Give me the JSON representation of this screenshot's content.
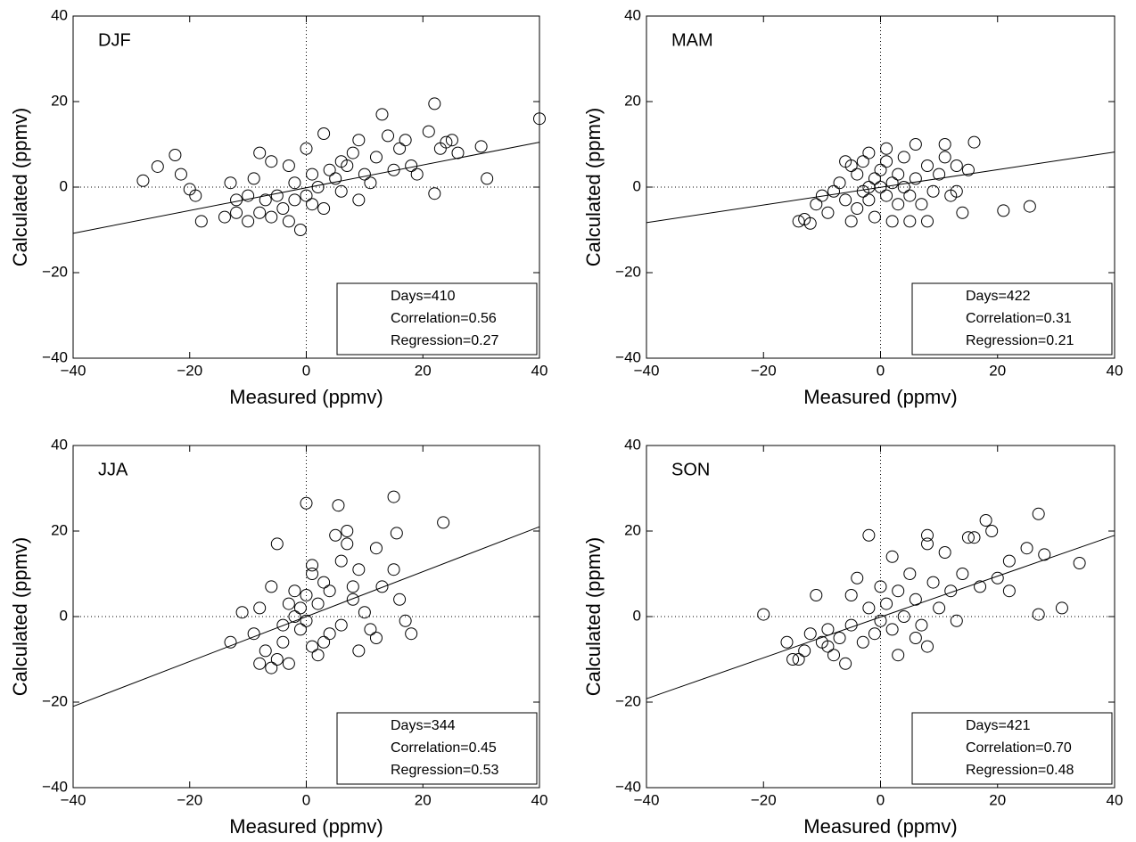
{
  "chart_data": [
    {
      "type": "scatter",
      "title": "DJF",
      "xlabel": "Measured (ppmv)",
      "ylabel": "Calculated (ppmv)",
      "xlim": [
        -40,
        40
      ],
      "ylim": [
        -40,
        40
      ],
      "xticks": [
        {
          "value": -40,
          "label": "−40"
        },
        {
          "value": -20,
          "label": "−20"
        },
        0,
        20,
        40
      ],
      "yticks": [
        {
          "value": -40,
          "label": "−40"
        },
        {
          "value": -20,
          "label": "−20"
        },
        0,
        20,
        40
      ],
      "zero_lines": true,
      "color": "#000000",
      "stats": [
        "Days=410",
        "Correlation=0.56",
        "Regression=0.27"
      ],
      "regression_line": {
        "x": [
          -40,
          40
        ],
        "y": [
          -10.8,
          10.5
        ]
      },
      "x": [
        -28,
        -25.5,
        -22.5,
        -21.5,
        -20,
        -19,
        -18,
        40,
        31,
        30,
        22,
        22,
        21,
        13,
        14,
        17,
        16,
        25,
        26,
        23,
        24,
        18,
        10,
        8,
        9,
        3,
        7,
        5,
        2,
        0,
        -2,
        -4,
        -6,
        -8,
        -10,
        -12,
        -14,
        -8,
        -6,
        -3,
        -1,
        -3,
        1,
        3,
        6,
        11,
        15,
        19,
        -5,
        -7,
        -10,
        -12,
        -13,
        -9,
        0,
        4,
        1,
        -2,
        6,
        9,
        12
      ],
      "y": [
        1.5,
        4.8,
        7.5,
        3,
        -0.5,
        -2,
        -8,
        16,
        2,
        9.5,
        19.5,
        -1.5,
        13,
        17,
        12,
        11,
        9,
        11,
        8,
        9,
        10.5,
        5,
        3,
        8,
        11,
        12.5,
        5,
        2,
        0,
        -2,
        -3,
        -5,
        -7,
        -6,
        -8,
        -6,
        -7,
        8,
        6,
        5,
        -10,
        -8,
        -4,
        -5,
        -1,
        1,
        4,
        3,
        -2,
        -3,
        -2,
        -3,
        1,
        2,
        9,
        4,
        3,
        1,
        6,
        -3,
        7
      ]
    },
    {
      "type": "scatter",
      "title": "MAM",
      "xlabel": "Measured (ppmv)",
      "ylabel": "Calculated (ppmv)",
      "xlim": [
        -40,
        40
      ],
      "ylim": [
        -40,
        40
      ],
      "xticks": [
        {
          "value": -40,
          "label": "−40"
        },
        {
          "value": -20,
          "label": "−20"
        },
        0,
        20,
        40
      ],
      "yticks": [
        {
          "value": -40,
          "label": "−40"
        },
        {
          "value": -20,
          "label": "−20"
        },
        0,
        20,
        40
      ],
      "zero_lines": true,
      "color": "#000000",
      "stats": [
        "Days=422",
        "Correlation=0.31",
        "Regression=0.21"
      ],
      "regression_line": {
        "x": [
          -40,
          40
        ],
        "y": [
          -8.3,
          8.2
        ]
      },
      "x": [
        -14,
        -13,
        -12,
        -11,
        -10,
        -9,
        -8,
        -7,
        -6,
        -5,
        -5,
        -4,
        -4,
        -3,
        -3,
        -2,
        -2,
        -1,
        -1,
        0,
        0,
        1,
        1,
        2,
        2,
        3,
        3,
        4,
        4,
        5,
        6,
        6,
        7,
        8,
        9,
        10,
        11,
        12,
        13,
        14,
        15,
        16,
        21,
        25.5,
        -6,
        8,
        5,
        -2,
        1,
        11,
        13
      ],
      "y": [
        -8,
        -7.5,
        -8.5,
        -4,
        -2,
        -6,
        -1,
        1,
        -3,
        5,
        -8,
        3,
        -5,
        -1,
        6,
        0,
        -3,
        2,
        -7,
        0,
        4,
        -2,
        6,
        1,
        -8,
        3,
        -4,
        0,
        7,
        -2,
        10,
        2,
        -4,
        5,
        -1,
        3,
        10,
        -2,
        5,
        -6,
        4,
        10.5,
        -5.5,
        -4.5,
        6,
        -8,
        -8,
        8,
        9,
        7,
        -1
      ]
    },
    {
      "type": "scatter",
      "title": "JJA",
      "xlabel": "Measured (ppmv)",
      "ylabel": "Calculated (ppmv)",
      "xlim": [
        -40,
        40
      ],
      "ylim": [
        -40,
        40
      ],
      "xticks": [
        {
          "value": -40,
          "label": "−40"
        },
        {
          "value": -20,
          "label": "−20"
        },
        0,
        20,
        40
      ],
      "yticks": [
        {
          "value": -40,
          "label": "−40"
        },
        {
          "value": -20,
          "label": "−20"
        },
        0,
        20,
        40
      ],
      "zero_lines": true,
      "color": "#000000",
      "stats": [
        "Days=344",
        "Correlation=0.45",
        "Regression=0.53"
      ],
      "regression_line": {
        "x": [
          -40,
          40
        ],
        "y": [
          -21,
          21
        ]
      },
      "x": [
        -13,
        -11,
        -9,
        -8,
        -7,
        -6,
        -5,
        -5,
        -4,
        -3,
        -3,
        -2,
        -2,
        -1,
        -1,
        0,
        0,
        0,
        1,
        1,
        2,
        2,
        3,
        4,
        4,
        5,
        5.5,
        6,
        6,
        7,
        7,
        8,
        9,
        9,
        10,
        11,
        12,
        12,
        13,
        15,
        15,
        15.5,
        16,
        17,
        18,
        23.5,
        -6,
        -8,
        1,
        3,
        8,
        -4
      ],
      "y": [
        -6,
        1,
        -4,
        -11,
        -8,
        -12,
        -10,
        17,
        -2,
        3,
        -11,
        0,
        6,
        -3,
        2,
        5,
        -1,
        26.5,
        -7,
        10,
        -9,
        3,
        8,
        -4,
        6,
        19,
        26,
        13,
        -2,
        20,
        17,
        4,
        -8,
        11,
        1,
        -3,
        16,
        -5,
        7,
        28,
        11,
        19.5,
        4,
        -1,
        -4,
        22,
        7,
        2,
        12,
        -6,
        7,
        -6
      ]
    },
    {
      "type": "scatter",
      "title": "SON",
      "xlabel": "Measured (ppmv)",
      "ylabel": "Calculated (ppmv)",
      "xlim": [
        -40,
        40
      ],
      "ylim": [
        -40,
        40
      ],
      "xticks": [
        {
          "value": -40,
          "label": "−40"
        },
        {
          "value": -20,
          "label": "−20"
        },
        0,
        20,
        40
      ],
      "yticks": [
        {
          "value": -40,
          "label": "−40"
        },
        {
          "value": -20,
          "label": "−20"
        },
        0,
        20,
        40
      ],
      "zero_lines": true,
      "color": "#000000",
      "stats": [
        "Days=421",
        "Correlation=0.70",
        "Regression=0.48"
      ],
      "regression_line": {
        "x": [
          -40,
          40
        ],
        "y": [
          -19.2,
          19
        ]
      },
      "x": [
        -20,
        -16,
        -14,
        -13,
        -12,
        -11,
        -10,
        -9,
        -8,
        -7,
        -6,
        -5,
        -5,
        -4,
        -3,
        -2,
        -2,
        -1,
        0,
        0,
        1,
        2,
        2,
        3,
        4,
        5,
        6,
        7,
        8,
        8,
        8,
        9,
        10,
        11,
        12,
        13,
        14,
        15,
        16,
        17,
        18,
        19,
        20,
        22,
        22,
        25,
        27,
        27,
        28,
        31,
        34,
        -15,
        -9,
        6,
        3
      ],
      "y": [
        0.5,
        -6,
        -10,
        -8,
        -4,
        5,
        -6,
        -3,
        -9,
        -5,
        -11,
        -2,
        5,
        9,
        -6,
        19,
        2,
        -4,
        7,
        -1,
        3,
        14,
        -3,
        6,
        0,
        10,
        4,
        -2,
        19,
        -7,
        17,
        8,
        2,
        15,
        6,
        -1,
        10,
        18.5,
        18.5,
        7,
        22.5,
        20,
        9,
        13,
        6,
        16,
        24,
        0.5,
        14.5,
        2,
        12.5,
        -10,
        -7,
        -5,
        -9
      ]
    }
  ]
}
